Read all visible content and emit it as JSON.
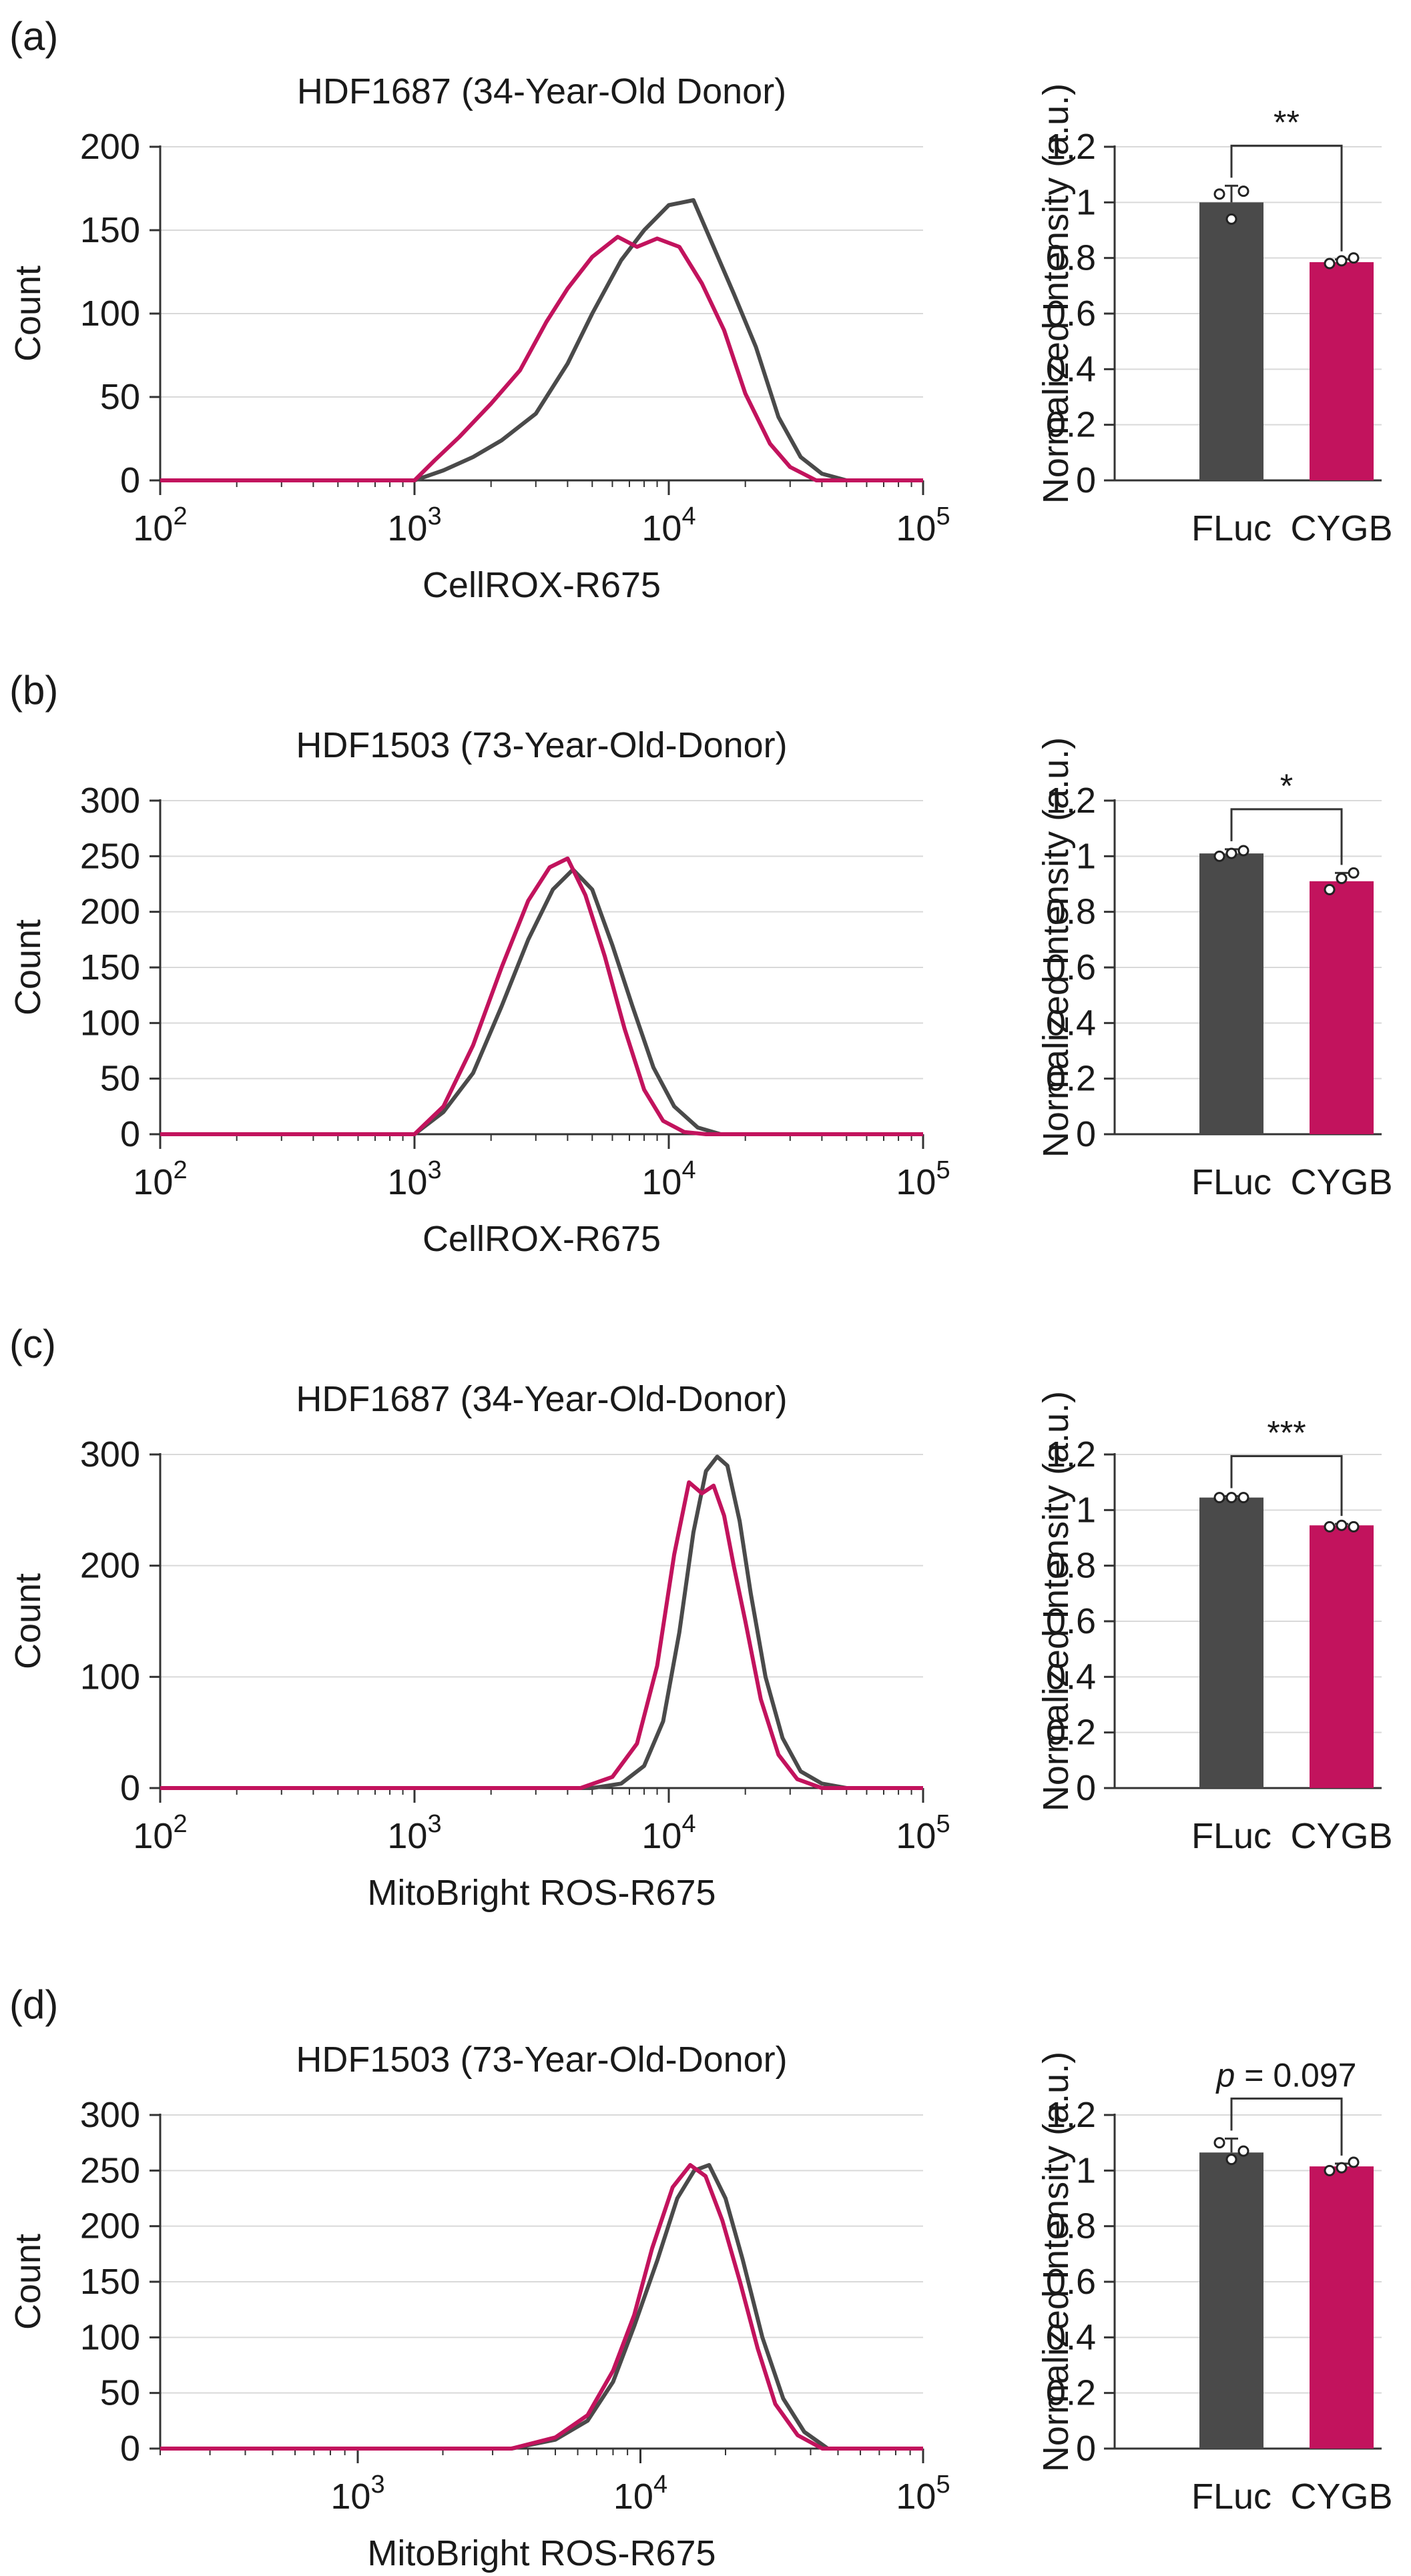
{
  "colors": {
    "fluc": "#4a4a4a",
    "cygb": "#c2135d",
    "grid": "#d9d9d9",
    "axis": "#333333"
  },
  "chart_data": [
    {
      "panel": "(a)",
      "histogram": {
        "type": "line",
        "title": "HDF1687 (34-Year-Old Donor)",
        "xlabel": "CellROX-R675",
        "ylabel": "Count",
        "xscale": "log",
        "xlim": [
          100,
          100000
        ],
        "xticks": [
          {
            "value": 100,
            "base": "10",
            "exp": "2"
          },
          {
            "value": 1000,
            "base": "10",
            "exp": "3"
          },
          {
            "value": 10000,
            "base": "10",
            "exp": "4"
          },
          {
            "value": 100000,
            "base": "10",
            "exp": "5"
          }
        ],
        "ylim": [
          0,
          200
        ],
        "yticks": [
          "0",
          "50",
          "100",
          "150",
          "200"
        ],
        "series": [
          {
            "name": "FLuc",
            "color": "#4a4a4a",
            "x": [
              100,
              1000,
              1300,
              1700,
              2200,
              3000,
              4000,
              5000,
              6500,
              8000,
              10000,
              12500,
              15000,
              18000,
              22000,
              27000,
              33000,
              40000,
              50000,
              100000
            ],
            "y": [
              0,
              0,
              6,
              14,
              24,
              40,
              70,
              100,
              132,
              150,
              165,
              168,
              140,
              112,
              80,
              38,
              14,
              4,
              0,
              0
            ]
          },
          {
            "name": "CYGB",
            "color": "#c2135d",
            "x": [
              100,
              1000,
              1200,
              1500,
              2000,
              2600,
              3300,
              4000,
              5000,
              6300,
              7500,
              9000,
              11000,
              13500,
              16500,
              20000,
              25000,
              30000,
              38000,
              100000
            ],
            "y": [
              0,
              0,
              12,
              26,
              46,
              66,
              95,
              115,
              134,
              146,
              140,
              145,
              140,
              118,
              90,
              52,
              22,
              8,
              0,
              0
            ]
          }
        ]
      },
      "bar": {
        "type": "bar",
        "ylabel": "Normalized Intensity (a.u.)",
        "ylim": [
          0,
          1.2
        ],
        "yticks": [
          "0",
          "0.2",
          "0.4",
          "0.6",
          "0.8",
          "1",
          "1.2"
        ],
        "categories": [
          "FLuc",
          "CYGB"
        ],
        "values": [
          1.0,
          0.785
        ],
        "errors": [
          0.06,
          0.01
        ],
        "points": [
          [
            1.03,
            0.94,
            1.04
          ],
          [
            0.78,
            0.79,
            0.8
          ]
        ],
        "significance": "**"
      }
    },
    {
      "panel": "(b)",
      "histogram": {
        "type": "line",
        "title": "HDF1503 (73-Year-Old-Donor)",
        "xlabel": "CellROX-R675",
        "ylabel": "Count",
        "xscale": "log",
        "xlim": [
          100,
          100000
        ],
        "xticks": [
          {
            "value": 100,
            "base": "10",
            "exp": "2"
          },
          {
            "value": 1000,
            "base": "10",
            "exp": "3"
          },
          {
            "value": 10000,
            "base": "10",
            "exp": "4"
          },
          {
            "value": 100000,
            "base": "10",
            "exp": "5"
          }
        ],
        "ylim": [
          0,
          300
        ],
        "yticks": [
          "0",
          "50",
          "100",
          "150",
          "200",
          "250",
          "300"
        ],
        "series": [
          {
            "name": "FLuc",
            "color": "#4a4a4a",
            "x": [
              100,
              1000,
              1300,
              1700,
              2200,
              2800,
              3500,
              4200,
              5000,
              6000,
              7200,
              8700,
              10500,
              13000,
              16000,
              100000
            ],
            "y": [
              0,
              0,
              20,
              55,
              115,
              175,
              220,
              238,
              220,
              170,
              115,
              60,
              25,
              6,
              0,
              0
            ]
          },
          {
            "name": "CYGB",
            "color": "#c2135d",
            "x": [
              100,
              1000,
              1300,
              1700,
              2200,
              2800,
              3400,
              4000,
              4700,
              5600,
              6700,
              8000,
              9500,
              11500,
              14000,
              100000
            ],
            "y": [
              0,
              0,
              25,
              80,
              150,
              210,
              240,
              248,
              215,
              160,
              95,
              40,
              12,
              2,
              0,
              0
            ]
          }
        ]
      },
      "bar": {
        "type": "bar",
        "ylabel": "Normalized Intensity (a.u.)",
        "ylim": [
          0,
          1.2
        ],
        "yticks": [
          "0",
          "0.2",
          "0.4",
          "0.6",
          "0.8",
          "1",
          "1.2"
        ],
        "categories": [
          "FLuc",
          "CYGB"
        ],
        "values": [
          1.01,
          0.91
        ],
        "errors": [
          0.015,
          0.03
        ],
        "points": [
          [
            1.0,
            1.01,
            1.02
          ],
          [
            0.88,
            0.92,
            0.94
          ]
        ],
        "significance": "*"
      }
    },
    {
      "panel": "(c)",
      "histogram": {
        "type": "line",
        "title": "HDF1687 (34-Year-Old-Donor)",
        "xlabel": "MitoBright ROS-R675",
        "ylabel": "Count",
        "xscale": "log",
        "xlim": [
          100,
          100000
        ],
        "xticks": [
          {
            "value": 100,
            "base": "10",
            "exp": "2"
          },
          {
            "value": 1000,
            "base": "10",
            "exp": "3"
          },
          {
            "value": 10000,
            "base": "10",
            "exp": "4"
          },
          {
            "value": 100000,
            "base": "10",
            "exp": "5"
          }
        ],
        "ylim": [
          0,
          300
        ],
        "yticks": [
          "0",
          "100",
          "200",
          "300"
        ],
        "series": [
          {
            "name": "FLuc",
            "color": "#4a4a4a",
            "x": [
              100,
              5000,
              6500,
              8000,
              9500,
              11000,
              12500,
              14000,
              15500,
              17000,
              19000,
              21000,
              24000,
              28000,
              33000,
              40000,
              50000,
              100000
            ],
            "y": [
              0,
              0,
              4,
              20,
              60,
              140,
              230,
              285,
              298,
              290,
              240,
              175,
              100,
              45,
              15,
              4,
              0,
              0
            ]
          },
          {
            "name": "CYGB",
            "color": "#c2135d",
            "x": [
              100,
              4500,
              6000,
              7500,
              9000,
              10500,
              12000,
              13500,
              15000,
              16500,
              18000,
              20000,
              23000,
              27000,
              32000,
              40000,
              100000
            ],
            "y": [
              0,
              0,
              10,
              40,
              110,
              210,
              275,
              265,
              272,
              245,
              200,
              150,
              80,
              30,
              8,
              0,
              0
            ]
          }
        ]
      },
      "bar": {
        "type": "bar",
        "ylabel": "Normalized Intensity (a.u.)",
        "ylim": [
          0,
          1.2
        ],
        "yticks": [
          "0",
          "0.2",
          "0.4",
          "0.6",
          "0.8",
          "1",
          "1.2"
        ],
        "categories": [
          "FLuc",
          "CYGB"
        ],
        "values": [
          1.045,
          0.945
        ],
        "errors": [
          0.005,
          0.005
        ],
        "points": [
          [
            1.045,
            1.045,
            1.045
          ],
          [
            0.94,
            0.945,
            0.94
          ]
        ],
        "significance": "***"
      }
    },
    {
      "panel": "(d)",
      "histogram": {
        "type": "line",
        "title": "HDF1503 (73-Year-Old-Donor)",
        "xlabel": "MitoBright ROS-R675",
        "ylabel": "Count",
        "xscale": "log",
        "xlim": [
          200,
          100000
        ],
        "xticks": [
          {
            "value": 1000,
            "base": "10",
            "exp": "3"
          },
          {
            "value": 10000,
            "base": "10",
            "exp": "4"
          },
          {
            "value": 100000,
            "base": "10",
            "exp": "5"
          }
        ],
        "ylim": [
          0,
          300
        ],
        "yticks": [
          "0",
          "50",
          "100",
          "150",
          "200",
          "250",
          "300"
        ],
        "series": [
          {
            "name": "FLuc",
            "color": "#4a4a4a",
            "x": [
              200,
              3500,
              5000,
              6500,
              8000,
              9500,
              11500,
              13500,
              15500,
              17500,
              20000,
              23000,
              27000,
              32000,
              38000,
              46000,
              100000
            ],
            "y": [
              0,
              0,
              8,
              25,
              60,
              110,
              170,
              225,
              250,
              255,
              225,
              170,
              100,
              45,
              15,
              0,
              0
            ]
          },
          {
            "name": "CYGB",
            "color": "#c2135d",
            "x": [
              200,
              3500,
              5000,
              6500,
              8000,
              9500,
              11000,
              13000,
              15000,
              17000,
              19500,
              22500,
              26000,
              30000,
              36000,
              44000,
              100000
            ],
            "y": [
              0,
              0,
              10,
              30,
              70,
              120,
              180,
              235,
              255,
              245,
              205,
              150,
              90,
              40,
              12,
              0,
              0
            ]
          }
        ]
      },
      "bar": {
        "type": "bar",
        "ylabel": "Normalized Intensity (a.u.)",
        "ylim": [
          0,
          1.2
        ],
        "yticks": [
          "0",
          "0.2",
          "0.4",
          "0.6",
          "0.8",
          "1",
          "1.2"
        ],
        "categories": [
          "FLuc",
          "CYGB"
        ],
        "values": [
          1.065,
          1.015
        ],
        "errors": [
          0.05,
          0.01
        ],
        "points": [
          [
            1.1,
            1.04,
            1.07
          ],
          [
            1.0,
            1.01,
            1.03
          ]
        ],
        "significance": "p = 0.097"
      }
    }
  ]
}
